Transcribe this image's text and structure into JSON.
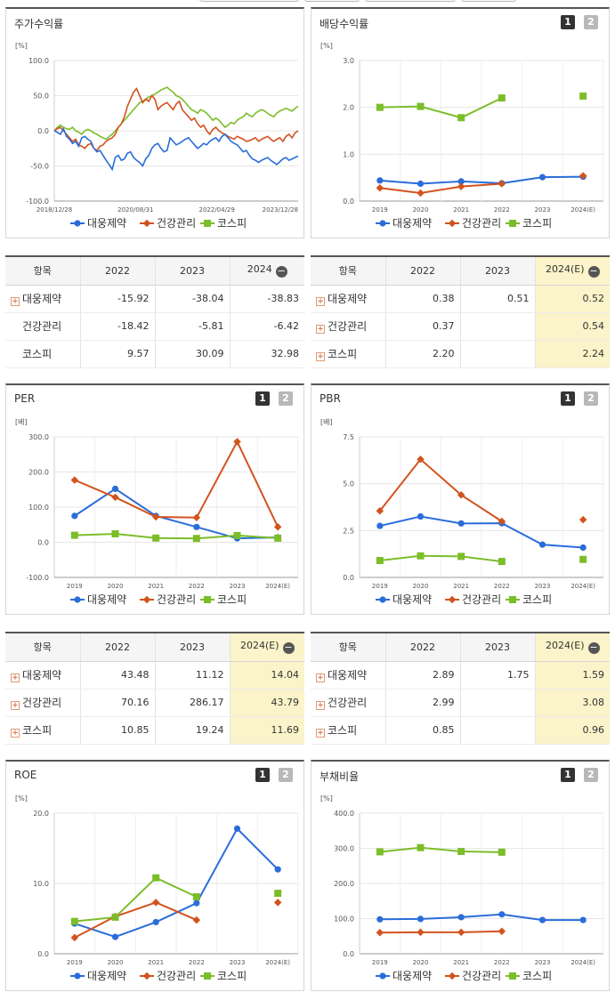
{
  "colors": {
    "s1": "#2a6dd9",
    "s2": "#d2531e",
    "s3": "#7cbd2a"
  },
  "legend": [
    "대웅제약",
    "건강관리",
    "코스피"
  ],
  "top_buttons": [
    "1",
    "2"
  ],
  "panels": [
    {
      "id": "stock-return",
      "title": "주가수익률",
      "unit": "[%]",
      "has_buttons": false,
      "chart_data": {
        "type": "line",
        "title": "주가수익률",
        "ylabel": "[%]",
        "ylim": [
          -100,
          100
        ],
        "yticks": [
          "100.0",
          "50.0",
          "0.0",
          "-50.0",
          "-100.0"
        ],
        "xticks": [
          "2018/12/28",
          "2020/08/31",
          "2022/04/29",
          "2023/12/28"
        ],
        "series": [
          {
            "name": "대웅제약",
            "values": [
              0,
              -2,
              -5,
              3,
              -8,
              -12,
              -18,
              -15,
              -22,
              -10,
              -8,
              -12,
              -15,
              -25,
              -30,
              -28,
              -35,
              -42,
              -48,
              -55,
              -38,
              -35,
              -42,
              -40,
              -32,
              -30,
              -38,
              -42,
              -45,
              -50,
              -40,
              -35,
              -25,
              -20,
              -18,
              -25,
              -30,
              -28,
              -10,
              -15,
              -20,
              -18,
              -15,
              -12,
              -10,
              -15,
              -20,
              -25,
              -22,
              -18,
              -20,
              -15,
              -12,
              -10,
              -15,
              -8,
              -5,
              -10,
              -15,
              -18,
              -20,
              -25,
              -30,
              -28,
              -35,
              -40,
              -42,
              -45,
              -42,
              -40,
              -38,
              -42,
              -45,
              -48,
              -44,
              -40,
              -38,
              -42,
              -40,
              -38,
              -36
            ]
          },
          {
            "name": "건강관리",
            "values": [
              0,
              3,
              5,
              0,
              -5,
              -10,
              -15,
              -12,
              -20,
              -22,
              -25,
              -20,
              -18,
              -25,
              -28,
              -22,
              -20,
              -15,
              -12,
              -10,
              -5,
              5,
              10,
              20,
              35,
              45,
              55,
              60,
              50,
              40,
              45,
              42,
              50,
              45,
              30,
              35,
              38,
              40,
              35,
              30,
              38,
              42,
              30,
              25,
              20,
              15,
              18,
              10,
              5,
              8,
              0,
              -5,
              2,
              5,
              0,
              -3,
              -5,
              -8,
              -10,
              -12,
              -8,
              -10,
              -12,
              -15,
              -14,
              -12,
              -10,
              -15,
              -12,
              -10,
              -8,
              -12,
              -15,
              -12,
              -10,
              -15,
              -8,
              -5,
              -10,
              -3,
              0
            ]
          },
          {
            "name": "코스피",
            "values": [
              0,
              5,
              8,
              5,
              3,
              2,
              5,
              0,
              -2,
              -5,
              0,
              2,
              0,
              -3,
              -5,
              -8,
              -10,
              -12,
              -8,
              -5,
              0,
              5,
              10,
              15,
              20,
              25,
              30,
              35,
              40,
              42,
              45,
              48,
              50,
              52,
              55,
              58,
              60,
              62,
              58,
              55,
              50,
              48,
              45,
              40,
              35,
              30,
              28,
              25,
              30,
              28,
              25,
              20,
              15,
              18,
              15,
              10,
              5,
              8,
              12,
              10,
              15,
              18,
              20,
              25,
              22,
              20,
              25,
              28,
              30,
              28,
              25,
              22,
              20,
              25,
              28,
              30,
              32,
              30,
              28,
              32,
              35
            ]
          }
        ]
      }
    },
    {
      "id": "dividend-yield",
      "title": "배당수익률",
      "unit": "[%]",
      "has_buttons": true,
      "chart_data": {
        "type": "line",
        "title": "배당수익률",
        "ylabel": "[%]",
        "ylim": [
          0,
          3
        ],
        "yticks": [
          "3.0",
          "2.0",
          "1.0",
          "0.0"
        ],
        "categories": [
          "2019",
          "2020",
          "2021",
          "2022",
          "2023",
          "2024(E)"
        ],
        "series": [
          {
            "name": "대웅제약",
            "values": [
              0.44,
              0.37,
              0.42,
              0.38,
              0.51,
              0.52
            ]
          },
          {
            "name": "건강관리",
            "values": [
              0.28,
              0.17,
              0.31,
              0.37,
              null,
              0.54
            ]
          },
          {
            "name": "코스피",
            "values": [
              2.0,
              2.02,
              1.78,
              2.2,
              null,
              2.24
            ]
          }
        ]
      }
    },
    {
      "id": "per",
      "title": "PER",
      "unit": "[배]",
      "has_buttons": true,
      "chart_data": {
        "type": "line",
        "title": "PER",
        "ylabel": "[배]",
        "ylim": [
          -100,
          300
        ],
        "yticks": [
          "300.0",
          "200.0",
          "100.0",
          "0.0",
          "-100.0"
        ],
        "categories": [
          "2019",
          "2020",
          "2021",
          "2022",
          "2023",
          "2024(E)"
        ],
        "series": [
          {
            "name": "대웅제약",
            "values": [
              75,
              152,
              75,
              43.48,
              11.12,
              14.04
            ]
          },
          {
            "name": "건강관리",
            "values": [
              177,
              128,
              72,
              70.16,
              286.17,
              43.79
            ]
          },
          {
            "name": "코스피",
            "values": [
              20,
              24,
              12,
              10.85,
              19.24,
              11.69
            ]
          }
        ]
      }
    },
    {
      "id": "pbr",
      "title": "PBR",
      "unit": "[배]",
      "has_buttons": true,
      "chart_data": {
        "type": "line",
        "title": "PBR",
        "ylabel": "[배]",
        "ylim": [
          0,
          7.5
        ],
        "yticks": [
          "7.5",
          "5.0",
          "2.5",
          "0.0"
        ],
        "categories": [
          "2019",
          "2020",
          "2021",
          "2022",
          "2023",
          "2024(E)"
        ],
        "series": [
          {
            "name": "대웅제약",
            "values": [
              2.75,
              3.25,
              2.88,
              2.89,
              1.75,
              1.59
            ]
          },
          {
            "name": "건강관리",
            "values": [
              3.55,
              6.3,
              4.4,
              2.99,
              null,
              3.08
            ]
          },
          {
            "name": "코스피",
            "values": [
              0.9,
              1.15,
              1.12,
              0.85,
              null,
              0.96
            ]
          }
        ]
      }
    },
    {
      "id": "roe",
      "title": "ROE",
      "unit": "[%]",
      "has_buttons": true,
      "chart_data": {
        "type": "line",
        "title": "ROE",
        "ylabel": "[%]",
        "ylim": [
          0,
          20
        ],
        "yticks": [
          "20.0",
          "10.0",
          "0.0"
        ],
        "categories": [
          "2019",
          "2020",
          "2021",
          "2022",
          "2023",
          "2024(E)"
        ],
        "series": [
          {
            "name": "대웅제약",
            "values": [
              4.3,
              2.4,
              4.5,
              7.2,
              17.8,
              12.0
            ]
          },
          {
            "name": "건강관리",
            "values": [
              2.3,
              5.3,
              7.3,
              4.8,
              null,
              7.3
            ]
          },
          {
            "name": "코스피",
            "values": [
              4.6,
              5.2,
              10.8,
              8.1,
              null,
              8.6
            ]
          }
        ]
      }
    },
    {
      "id": "debt-ratio",
      "title": "부채비율",
      "unit": "[%]",
      "has_buttons": true,
      "chart_data": {
        "type": "line",
        "title": "부채비율",
        "ylabel": "[%]",
        "ylim": [
          0,
          400
        ],
        "yticks": [
          "400.0",
          "300.0",
          "200.0",
          "100.0",
          "0.0"
        ],
        "categories": [
          "2019",
          "2020",
          "2021",
          "2022",
          "2023",
          "2024(E)"
        ],
        "series": [
          {
            "name": "대웅제약",
            "values": [
              98,
              99,
              104,
              112,
              96,
              96
            ]
          },
          {
            "name": "건강관리",
            "values": [
              60,
              61,
              61,
              64,
              null,
              null
            ]
          },
          {
            "name": "코스피",
            "values": [
              290,
              302,
              291,
              289,
              null,
              null
            ]
          }
        ]
      }
    }
  ],
  "tables": [
    {
      "id": "stock-return-table",
      "header": [
        "항목",
        "2022",
        "2023",
        "2024"
      ],
      "hl_last": false,
      "rows": [
        {
          "name": "대웅제약",
          "plus": true,
          "values": [
            "-15.92",
            "-38.04",
            "-38.83"
          ]
        },
        {
          "name": "건강관리",
          "plus": false,
          "values": [
            "-18.42",
            "-5.81",
            "-6.42"
          ]
        },
        {
          "name": "코스피",
          "plus": false,
          "values": [
            "9.57",
            "30.09",
            "32.98"
          ]
        }
      ]
    },
    {
      "id": "dividend-table",
      "header": [
        "항목",
        "2022",
        "2023",
        "2024(E)"
      ],
      "hl_last": true,
      "rows": [
        {
          "name": "대웅제약",
          "plus": true,
          "values": [
            "0.38",
            "0.51",
            "0.52"
          ]
        },
        {
          "name": "건강관리",
          "plus": true,
          "values": [
            "0.37",
            "",
            "0.54"
          ]
        },
        {
          "name": "코스피",
          "plus": true,
          "values": [
            "2.20",
            "",
            "2.24"
          ]
        }
      ]
    },
    {
      "id": "per-table",
      "header": [
        "항목",
        "2022",
        "2023",
        "2024(E)"
      ],
      "hl_last": true,
      "rows": [
        {
          "name": "대웅제약",
          "plus": true,
          "values": [
            "43.48",
            "11.12",
            "14.04"
          ]
        },
        {
          "name": "건강관리",
          "plus": true,
          "values": [
            "70.16",
            "286.17",
            "43.79"
          ]
        },
        {
          "name": "코스피",
          "plus": true,
          "values": [
            "10.85",
            "19.24",
            "11.69"
          ]
        }
      ]
    },
    {
      "id": "pbr-table",
      "header": [
        "항목",
        "2022",
        "2023",
        "2024(E)"
      ],
      "hl_last": true,
      "rows": [
        {
          "name": "대웅제약",
          "plus": true,
          "values": [
            "2.89",
            "1.75",
            "1.59"
          ]
        },
        {
          "name": "건강관리",
          "plus": true,
          "values": [
            "2.99",
            "",
            "3.08"
          ]
        },
        {
          "name": "코스피",
          "plus": true,
          "values": [
            "0.85",
            "",
            "0.96"
          ]
        }
      ]
    }
  ]
}
